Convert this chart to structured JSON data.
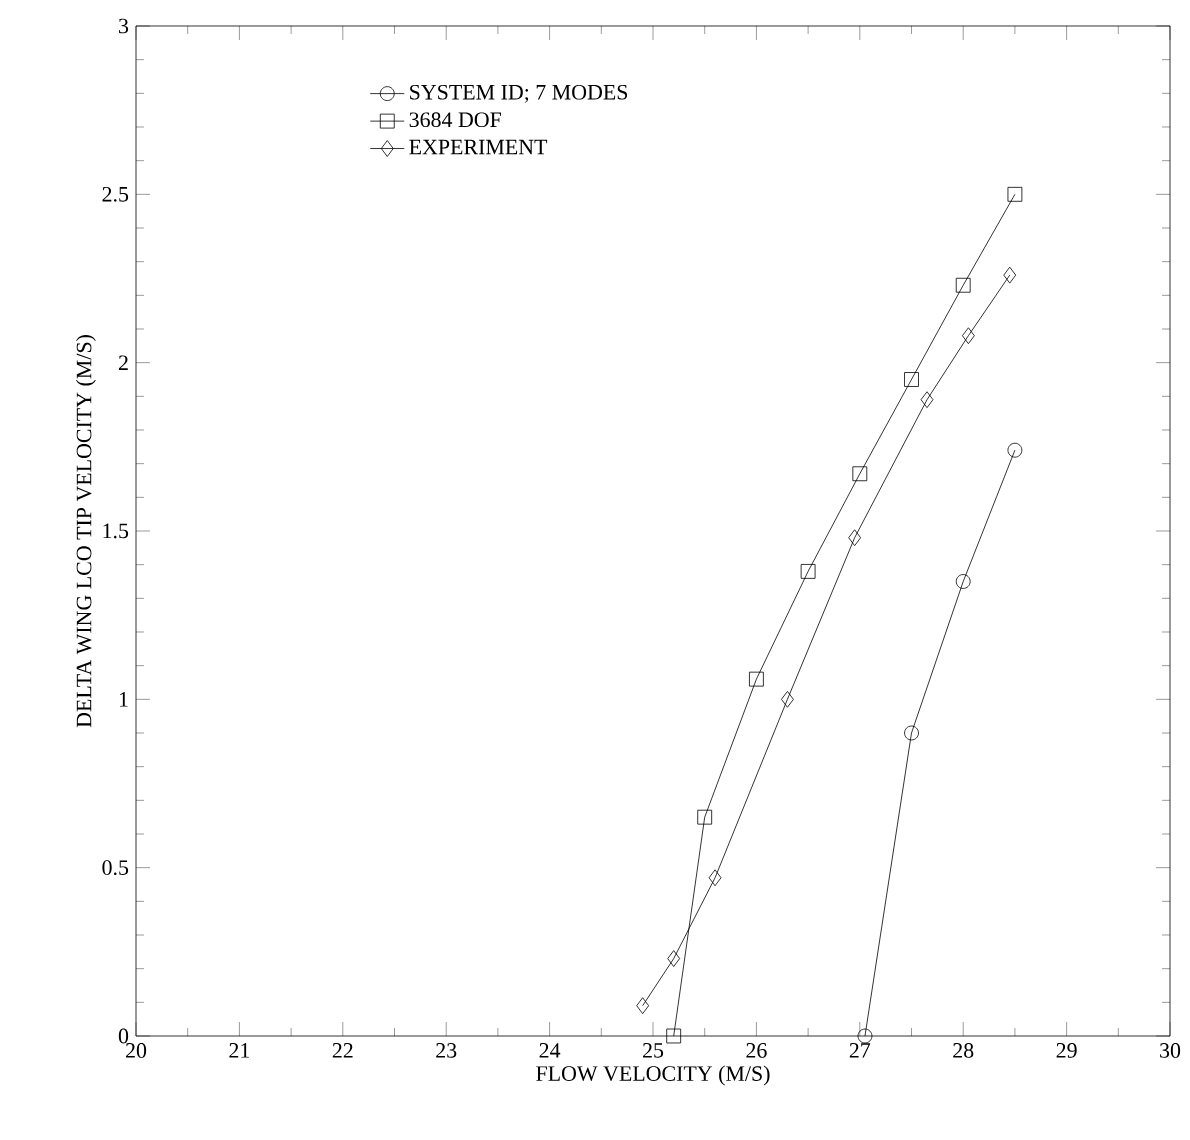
{
  "chart_data": {
    "type": "line",
    "xlabel": "FLOW VELOCITY (M/S)",
    "ylabel": "DELTA WING LCO TIP VELOCITY (M/S)",
    "xlim": [
      20,
      30
    ],
    "xticks": [
      20,
      21,
      22,
      23,
      24,
      25,
      26,
      27,
      28,
      29,
      30
    ],
    "ylim": [
      0,
      3
    ],
    "yticks": [
      0,
      0.5,
      1,
      1.5,
      2,
      2.5,
      3
    ],
    "grid": false,
    "legend": "top left",
    "line_style": "solid",
    "series": [
      {
        "name": "SYSTEM ID; 7 MODES",
        "color": "#000000",
        "marker": "circle",
        "x": [
          27.05,
          27.5,
          28.0,
          28.5
        ],
        "values": [
          0,
          0.9,
          1.35,
          1.74
        ]
      },
      {
        "name": "3684 DOF",
        "color": "#000000",
        "marker": "square",
        "x": [
          25.2,
          25.5,
          26.0,
          26.5,
          27.0,
          27.5,
          28.0,
          28.5
        ],
        "values": [
          0,
          0.65,
          1.06,
          1.38,
          1.67,
          1.95,
          2.23,
          2.5
        ]
      },
      {
        "name": "EXPERIMENT",
        "color": "#000000",
        "marker": "diamond",
        "x": [
          24.9,
          25.2,
          25.6,
          26.3,
          26.95,
          27.65,
          28.05,
          28.45
        ],
        "values": [
          0.09,
          0.23,
          0.47,
          1.0,
          1.48,
          1.89,
          2.08,
          2.26
        ]
      }
    ]
  }
}
